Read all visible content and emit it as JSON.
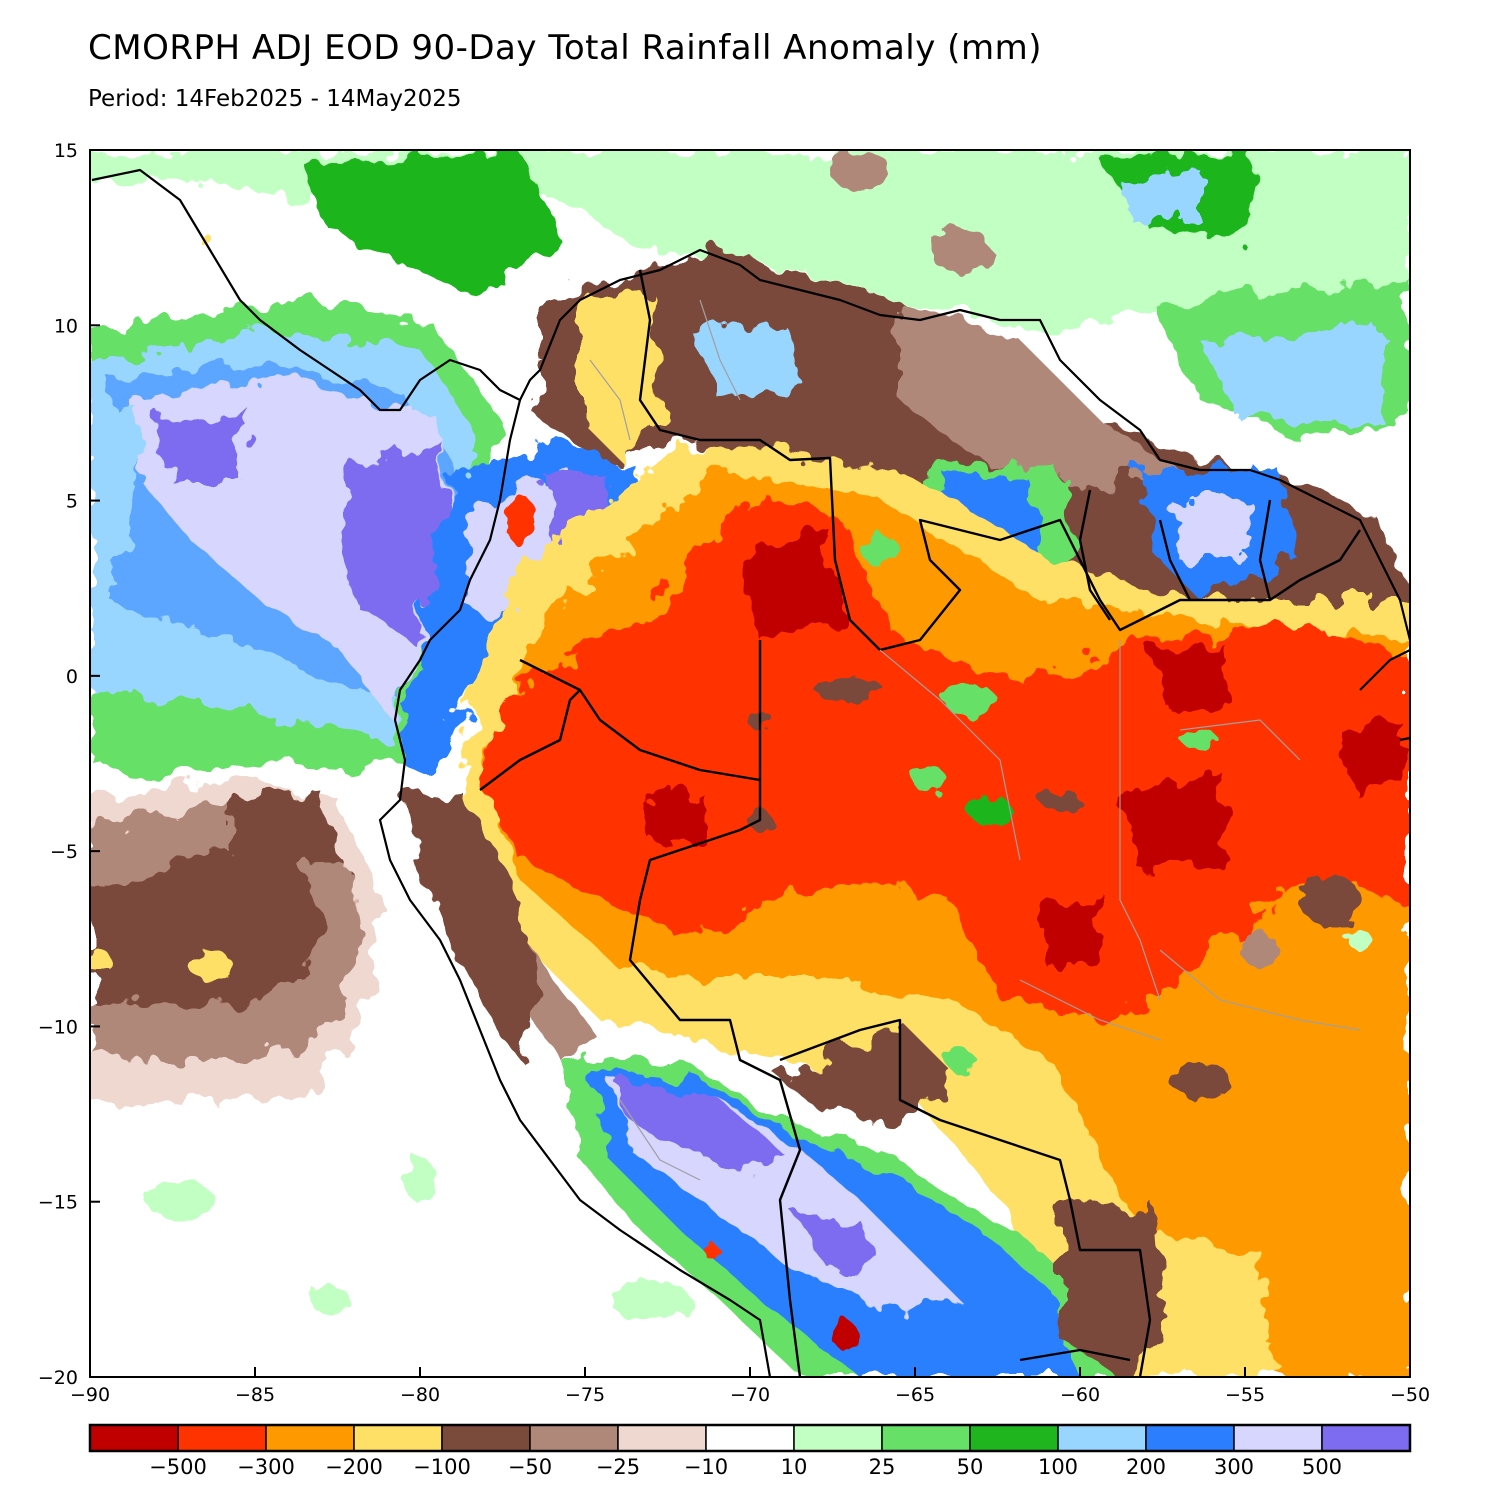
{
  "header": {
    "title": "CMORPH ADJ EOD 90-Day Total Rainfall Anomaly (mm)",
    "period": "Period: 14Feb2025 - 14May2025"
  },
  "map": {
    "lon_range": [
      -90,
      -50
    ],
    "lat_range": [
      -20,
      15
    ],
    "x_ticks": [
      {
        "value": -90,
        "label": "−90"
      },
      {
        "value": -85,
        "label": "−85"
      },
      {
        "value": -80,
        "label": "−80"
      },
      {
        "value": -75,
        "label": "−75"
      },
      {
        "value": -70,
        "label": "−70"
      },
      {
        "value": -65,
        "label": "−65"
      },
      {
        "value": -60,
        "label": "−60"
      },
      {
        "value": -55,
        "label": "−55"
      },
      {
        "value": -50,
        "label": "−50"
      }
    ],
    "y_ticks": [
      {
        "value": 15,
        "label": "15"
      },
      {
        "value": 10,
        "label": "10"
      },
      {
        "value": 5,
        "label": "5"
      },
      {
        "value": 0,
        "label": "0"
      },
      {
        "value": -5,
        "label": "−5"
      },
      {
        "value": -10,
        "label": "−10"
      },
      {
        "value": -15,
        "label": "−15"
      },
      {
        "value": -20,
        "label": "−20"
      }
    ]
  },
  "colorbar": {
    "colors": [
      "#c00000",
      "#ff3300",
      "#ff9900",
      "#ffe066",
      "#7a4a3a",
      "#b0887a",
      "#efd8cf",
      "#ffffff",
      "#c2ffc2",
      "#66e066",
      "#1fb51f",
      "#99d6ff",
      "#2b7fff",
      "#d6d6ff",
      "#7e6cf0"
    ],
    "labels": [
      "−500",
      "−300",
      "−200",
      "−100",
      "−50",
      "−25",
      "−10",
      "10",
      "25",
      "50",
      "100",
      "200",
      "300",
      "500"
    ]
  },
  "legend_colors": {
    "deficit_strong": "#c00000",
    "deficit": "#ff3300",
    "moderate_deficit": "#ff9900",
    "slight_deficit": "#ffe066",
    "surplus": "#1fb51f",
    "strong_surplus": "#7e6cf0"
  }
}
